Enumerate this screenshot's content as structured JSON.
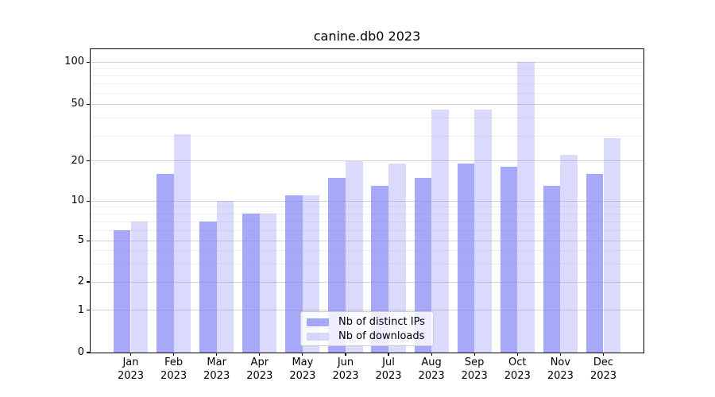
{
  "chart_data": {
    "type": "bar",
    "title": "canine.db0 2023",
    "categories": [
      "Jan",
      "Feb",
      "Mar",
      "Apr",
      "May",
      "Jun",
      "Jul",
      "Aug",
      "Sep",
      "Oct",
      "Nov",
      "Dec"
    ],
    "year_label": "2023",
    "series": [
      {
        "name": "Nb of distinct IPs",
        "color": "rgba(131,131,245,0.7)",
        "values": [
          6,
          16,
          7,
          8,
          11,
          15,
          13,
          15,
          19,
          18,
          13,
          16
        ]
      },
      {
        "name": "Nb of downloads",
        "color": "rgba(131,131,245,0.3)",
        "values": [
          7,
          31,
          10,
          8,
          11,
          20,
          19,
          46,
          46,
          100,
          22,
          29
        ]
      }
    ],
    "yscale": "symlog",
    "ylim": [
      0,
      124
    ],
    "yticks": [
      0,
      1,
      2,
      5,
      10,
      20,
      50,
      100
    ],
    "minor_yticks": [
      3,
      4,
      6,
      7,
      8,
      9,
      30,
      40,
      60,
      70,
      80,
      90
    ],
    "grid": "major+minor",
    "legend_position": "lower center, inside axes",
    "colors": {
      "grid_major": "#d4d4d4",
      "grid_minor": "#efefef",
      "axis": "#000000",
      "background": "#ffffff"
    }
  }
}
